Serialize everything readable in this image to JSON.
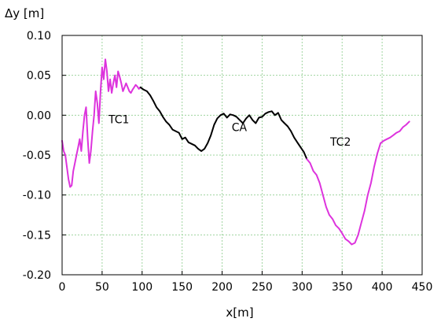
{
  "chart_data": {
    "type": "line",
    "ylabel": "Δy [m]",
    "xlabel": "x[m]",
    "xlim": [
      0,
      450
    ],
    "ylim": [
      -0.2,
      0.1
    ],
    "xticks": [
      0,
      50,
      100,
      150,
      200,
      250,
      300,
      350,
      400,
      450
    ],
    "yticks": [
      -0.2,
      -0.15,
      -0.1,
      -0.05,
      0.0,
      0.05,
      0.1
    ],
    "xtick_labels": [
      "0",
      "50",
      "100",
      "150",
      "200",
      "250",
      "300",
      "350",
      "400",
      "450"
    ],
    "ytick_labels": [
      "-0.20",
      "-0.15",
      "-0.10",
      "-0.05",
      "0.00",
      "0.05",
      "0.10"
    ],
    "grid": true,
    "series": [
      {
        "name": "TC1",
        "color": "#dd33dd",
        "x": [
          0,
          2,
          4,
          6,
          8,
          10,
          12,
          14,
          16,
          18,
          20,
          22,
          24,
          26,
          28,
          30,
          32,
          34,
          36,
          38,
          40,
          42,
          44,
          46,
          48,
          50,
          52,
          54,
          56,
          58,
          60,
          62,
          64,
          66,
          68,
          70,
          72,
          74,
          76,
          78,
          80,
          82,
          84,
          86,
          88,
          90,
          92,
          94,
          96,
          98
        ],
        "y": [
          -0.032,
          -0.045,
          -0.05,
          -0.065,
          -0.08,
          -0.09,
          -0.088,
          -0.07,
          -0.06,
          -0.05,
          -0.04,
          -0.03,
          -0.045,
          -0.02,
          0.0,
          0.01,
          -0.03,
          -0.06,
          -0.045,
          -0.02,
          0.0,
          0.03,
          0.015,
          -0.01,
          0.03,
          0.06,
          0.045,
          0.07,
          0.055,
          0.03,
          0.045,
          0.028,
          0.04,
          0.05,
          0.035,
          0.055,
          0.048,
          0.04,
          0.03,
          0.035,
          0.04,
          0.035,
          0.03,
          0.028,
          0.032,
          0.035,
          0.038,
          0.036,
          0.033,
          0.035
        ]
      },
      {
        "name": "CA",
        "color": "#000000",
        "x": [
          98,
          102,
          106,
          110,
          114,
          118,
          122,
          126,
          130,
          134,
          138,
          142,
          146,
          150,
          154,
          158,
          162,
          166,
          170,
          174,
          178,
          182,
          186,
          190,
          194,
          198,
          202,
          206,
          210,
          214,
          218,
          222,
          226,
          230,
          234,
          238,
          242,
          246,
          250,
          254,
          258,
          262,
          266,
          270,
          274,
          278,
          282,
          286,
          290,
          294,
          298,
          302,
          306
        ],
        "y": [
          0.035,
          0.032,
          0.03,
          0.025,
          0.018,
          0.01,
          0.005,
          -0.002,
          -0.008,
          -0.012,
          -0.018,
          -0.02,
          -0.022,
          -0.03,
          -0.028,
          -0.034,
          -0.036,
          -0.038,
          -0.042,
          -0.045,
          -0.042,
          -0.035,
          -0.025,
          -0.012,
          -0.004,
          0.0,
          0.002,
          -0.003,
          0.001,
          0.0,
          -0.002,
          -0.006,
          -0.01,
          -0.004,
          0.0,
          -0.006,
          -0.01,
          -0.003,
          -0.002,
          0.002,
          0.004,
          0.005,
          0.0,
          0.003,
          -0.006,
          -0.01,
          -0.014,
          -0.02,
          -0.028,
          -0.034,
          -0.04,
          -0.046,
          -0.055
        ]
      },
      {
        "name": "TC2",
        "color": "#dd33dd",
        "x": [
          306,
          310,
          314,
          318,
          322,
          326,
          330,
          334,
          338,
          342,
          346,
          350,
          354,
          358,
          362,
          366,
          370,
          374,
          378,
          382,
          386,
          390,
          394,
          398,
          402,
          406,
          410,
          414,
          418,
          422,
          426,
          430,
          434
        ],
        "y": [
          -0.055,
          -0.06,
          -0.07,
          -0.075,
          -0.085,
          -0.1,
          -0.115,
          -0.125,
          -0.13,
          -0.138,
          -0.142,
          -0.148,
          -0.155,
          -0.158,
          -0.162,
          -0.16,
          -0.15,
          -0.135,
          -0.12,
          -0.1,
          -0.085,
          -0.065,
          -0.048,
          -0.035,
          -0.032,
          -0.03,
          -0.028,
          -0.025,
          -0.022,
          -0.02,
          -0.015,
          -0.012,
          -0.008
        ]
      }
    ],
    "annotations": [
      {
        "text": "TC1",
        "x": 58,
        "y": -0.01
      },
      {
        "text": "CA",
        "x": 212,
        "y": -0.02
      },
      {
        "text": "TC2",
        "x": 335,
        "y": -0.038
      }
    ]
  }
}
